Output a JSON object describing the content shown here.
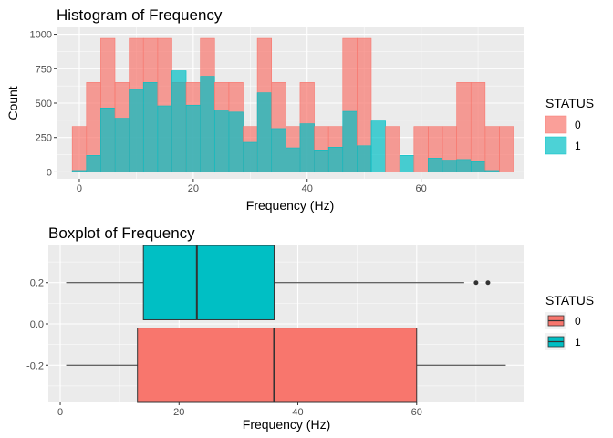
{
  "chart_data": [
    {
      "type": "histogram",
      "title": "Histogram of Frequency",
      "xlabel": "Frequency (Hz)",
      "ylabel": "Count",
      "xlim": [
        -4,
        78
      ],
      "ylim": [
        -50,
        1050
      ],
      "x_ticks": [
        0,
        20,
        40,
        60
      ],
      "y_ticks": [
        0,
        250,
        500,
        750,
        1000
      ],
      "y_tick_labels": [
        "0",
        "250",
        "500",
        "750",
        "1000"
      ],
      "bin_width": 2.5,
      "bin_centers": [
        0,
        2.5,
        5,
        7.5,
        10,
        12.5,
        15,
        17.5,
        20,
        22.5,
        25,
        27.5,
        30,
        32.5,
        35,
        37.5,
        40,
        42.5,
        45,
        47.5,
        50,
        52.5,
        55,
        57.5,
        60,
        62.5,
        65,
        67.5,
        70,
        72.5,
        75
      ],
      "series": [
        {
          "name": "0",
          "color": "#F8766D",
          "total_values": [
            330,
            650,
            970,
            650,
            970,
            970,
            970,
            650,
            650,
            970,
            650,
            650,
            330,
            970,
            650,
            330,
            650,
            330,
            330,
            970,
            970,
            0,
            330,
            0,
            330,
            330,
            330,
            650,
            650,
            330,
            330
          ]
        },
        {
          "name": "1",
          "color": "#00BFC4",
          "values": [
            10,
            120,
            465,
            390,
            600,
            650,
            480,
            735,
            485,
            695,
            450,
            435,
            215,
            575,
            315,
            175,
            350,
            160,
            180,
            440,
            190,
            370,
            0,
            120,
            0,
            100,
            85,
            90,
            80,
            10,
            0
          ]
        }
      ],
      "legend": {
        "title": "STATUS",
        "position": "right",
        "entries": [
          "0",
          "1"
        ]
      },
      "grid": true
    },
    {
      "type": "boxplot",
      "title": "Boxplot of Frequency",
      "xlabel": "Frequency (Hz)",
      "ylabel": "",
      "xlim": [
        -2,
        78
      ],
      "ylim": [
        -0.38,
        0.38
      ],
      "x_ticks": [
        0,
        20,
        40,
        60
      ],
      "y_ticks": [
        0.2,
        0.0,
        -0.2
      ],
      "y_tick_labels": [
        "0.2",
        "0.0",
        "-0.2"
      ],
      "boxes": [
        {
          "name": "1",
          "color": "#00BFC4",
          "y": 0.2,
          "whisker_low": 1,
          "q1": 14,
          "median": 23,
          "q3": 36,
          "whisker_high": 68,
          "outliers": [
            70,
            72
          ]
        },
        {
          "name": "0",
          "color": "#F8766D",
          "y": -0.2,
          "whisker_low": 1,
          "q1": 13,
          "median": 36,
          "q3": 60,
          "whisker_high": 75,
          "outliers": []
        }
      ],
      "legend": {
        "title": "STATUS",
        "position": "right",
        "entries": [
          "0",
          "1"
        ]
      },
      "grid": true
    }
  ]
}
